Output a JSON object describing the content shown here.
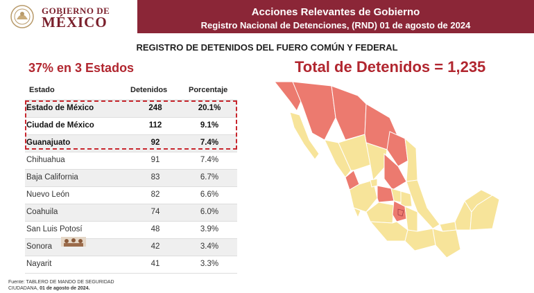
{
  "header": {
    "logo_line1": "GOBIERNO DE",
    "logo_line2": "MÉXICO",
    "title": "Acciones Relevantes de Gobierno",
    "subtitle": "Registro Nacional de Detenciones, (RND) 01 de agosto de 2024"
  },
  "section_title": "REGISTRO DE DETENIDOS DEL FUERO COMÚN Y FEDERAL",
  "top_states_label": "37% en 3 Estados",
  "total_label": "Total de Detenidos = 1,235",
  "table": {
    "columns": [
      "Estado",
      "Detenidos",
      "Porcentaje"
    ],
    "rows": [
      {
        "estado": "Estado de México",
        "detenidos": "248",
        "porcentaje": "20.1%"
      },
      {
        "estado": "Ciudad de México",
        "detenidos": "112",
        "porcentaje": "9.1%"
      },
      {
        "estado": "Guanajuato",
        "detenidos": "92",
        "porcentaje": "7.4%"
      },
      {
        "estado": "Chihuahua",
        "detenidos": "91",
        "porcentaje": "7.4%"
      },
      {
        "estado": "Baja California",
        "detenidos": "83",
        "porcentaje": "6.7%"
      },
      {
        "estado": "Nuevo León",
        "detenidos": "82",
        "porcentaje": "6.6%"
      },
      {
        "estado": "Coahuila",
        "detenidos": "74",
        "porcentaje": "6.0%"
      },
      {
        "estado": "San Luis Potosí",
        "detenidos": "48",
        "porcentaje": "3.9%"
      },
      {
        "estado": "Sonora",
        "detenidos": "42",
        "porcentaje": "3.4%"
      },
      {
        "estado": "Nayarit",
        "detenidos": "41",
        "porcentaje": "3.3%"
      }
    ]
  },
  "footer": {
    "line1": "Fuente: TABLERO DE MANDO DE SEGURIDAD",
    "line2_prefix": "CIUDADANA, ",
    "line2_bold": "01 de agosto de 2024."
  },
  "colors": {
    "brand": "#8b2637",
    "accent_text": "#b1262f",
    "map_high": "#ec7a6f",
    "map_low": "#f7e49a",
    "highlight_border": "#c8262d"
  },
  "icons": {
    "seal": "mexico-coat-of-arms-icon",
    "map": "mexico-map-icon"
  }
}
